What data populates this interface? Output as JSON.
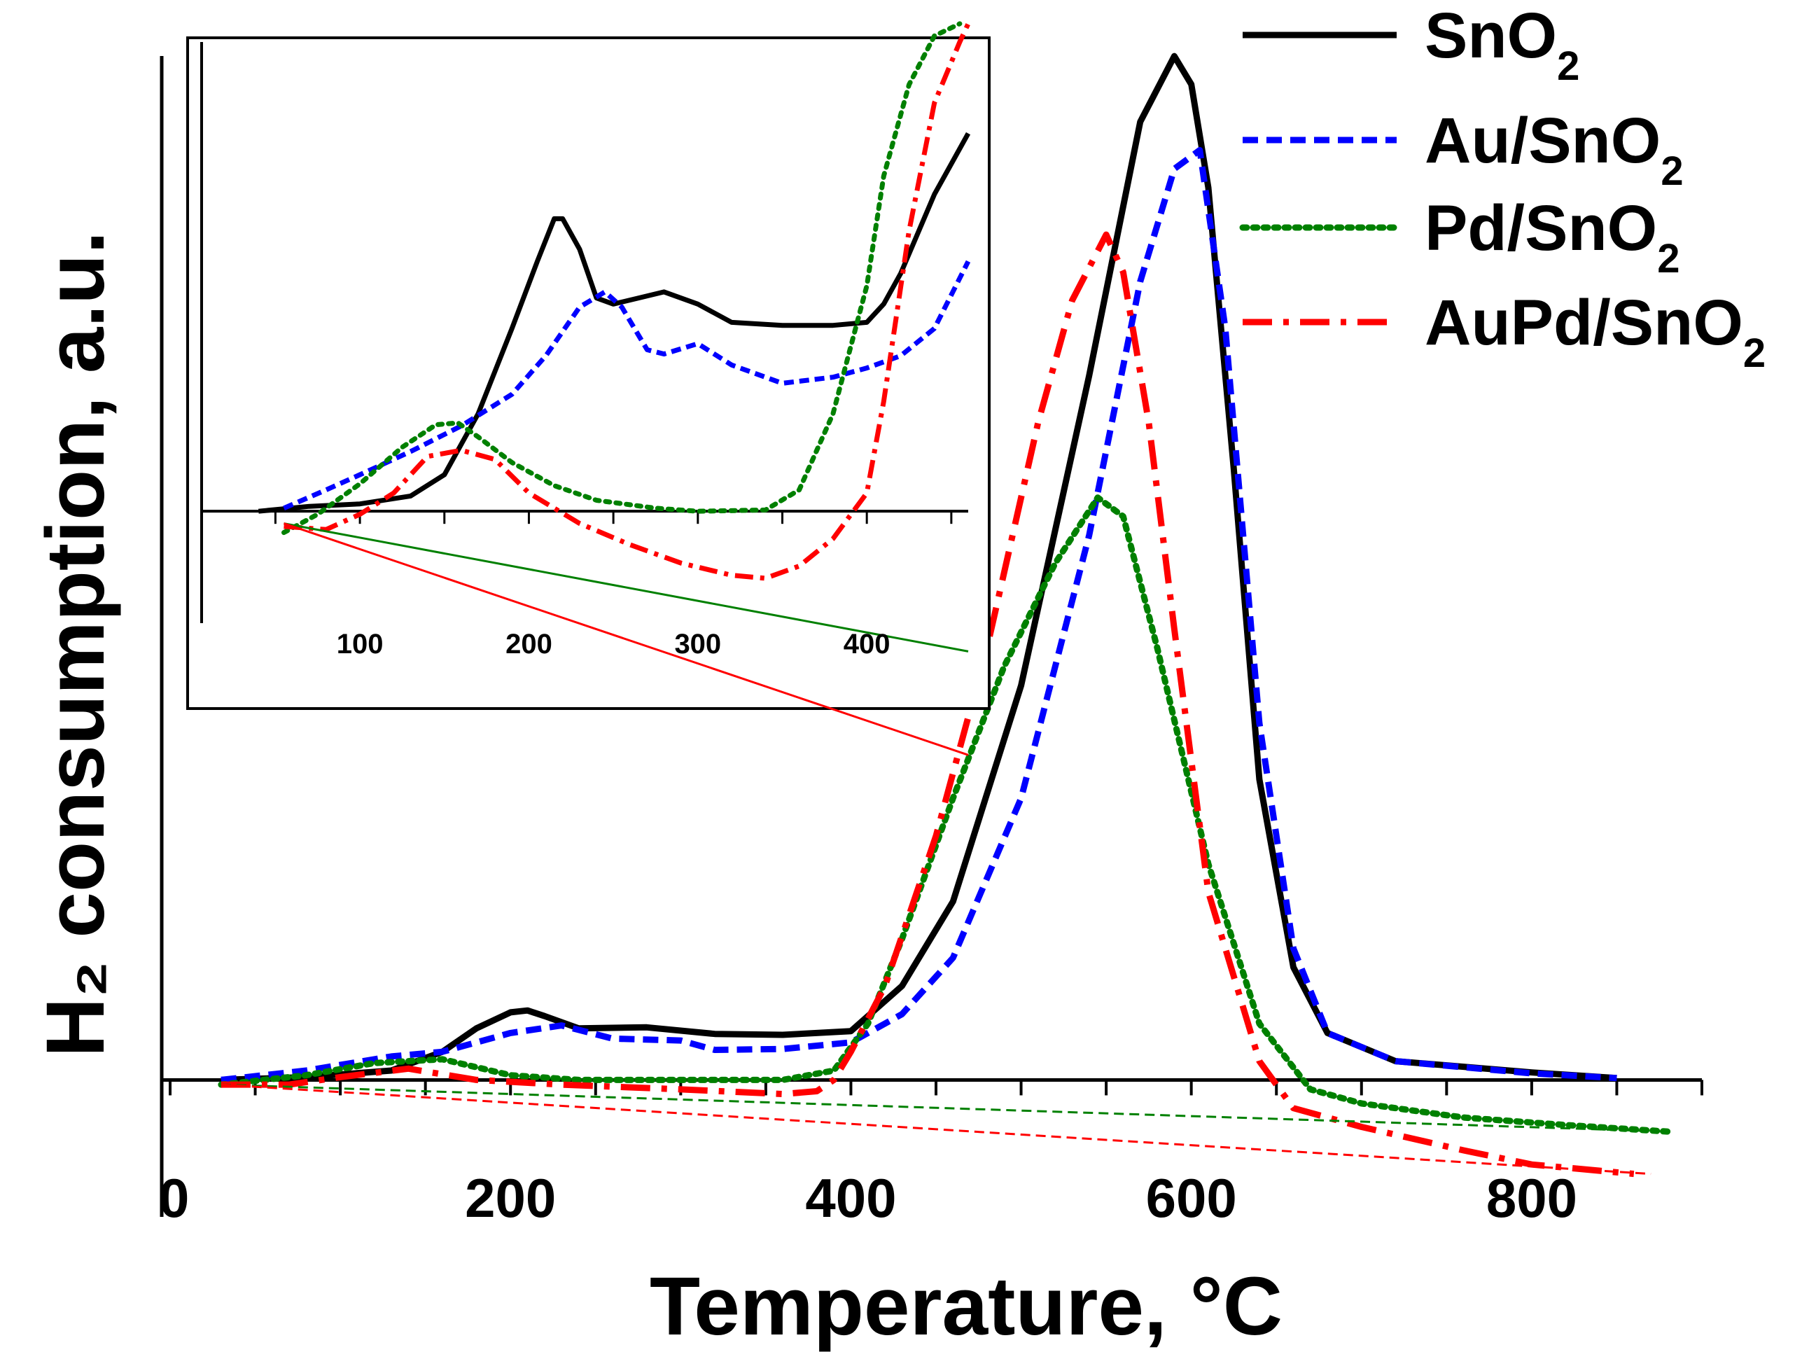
{
  "chart_data": [
    {
      "type": "line",
      "panel": "main",
      "xlabel": "Temperature, °C",
      "ylabel": "H₂ consumption, a.u.",
      "xlim": [
        0,
        900
      ],
      "ylim": [
        -1.1,
        11.2
      ],
      "x_ticks": [
        0,
        200,
        400,
        600,
        800
      ],
      "grid": false,
      "legend": {
        "placement": "top-right",
        "entries": [
          {
            "base": "SnO",
            "sub": "2",
            "series": "SnO2"
          },
          {
            "base": "Au/SnO",
            "sub": "2",
            "series": "Au/SnO2"
          },
          {
            "base": "Pd/SnO",
            "sub": "2",
            "series": "Pd/SnO2"
          },
          {
            "base": "AuPd/SnO",
            "sub": "2",
            "series": "AuPd/SnO2"
          }
        ]
      },
      "series": [
        {
          "name": "SnO2",
          "color": "#000000",
          "style": "solid",
          "x": [
            30,
            80,
            130,
            160,
            180,
            200,
            210,
            220,
            240,
            280,
            320,
            360,
            400,
            430,
            460,
            500,
            540,
            570,
            590,
            600,
            610,
            625,
            640,
            660,
            680,
            720,
            800,
            850
          ],
          "y": [
            0,
            0.03,
            0.1,
            0.3,
            0.55,
            0.72,
            0.74,
            0.68,
            0.55,
            0.56,
            0.49,
            0.48,
            0.52,
            1.0,
            1.9,
            4.2,
            7.5,
            10.2,
            10.9,
            10.6,
            9.5,
            6.5,
            3.2,
            1.2,
            0.5,
            0.2,
            0.08,
            0.02
          ]
        },
        {
          "name": "Au/SnO2",
          "color": "#0000ff",
          "style": "dashed",
          "x": [
            30,
            80,
            130,
            160,
            200,
            230,
            260,
            300,
            320,
            360,
            400,
            430,
            460,
            500,
            540,
            570,
            590,
            605,
            620,
            640,
            660,
            680,
            720,
            800,
            850
          ],
          "y": [
            0,
            0.1,
            0.25,
            0.3,
            0.5,
            0.58,
            0.44,
            0.42,
            0.32,
            0.33,
            0.4,
            0.7,
            1.3,
            3.0,
            5.8,
            8.5,
            9.7,
            9.9,
            8.0,
            3.8,
            1.4,
            0.5,
            0.2,
            0.07,
            0.02
          ]
        },
        {
          "name": "Pd/SnO2",
          "color": "#008000",
          "style": "dotted",
          "x": [
            30,
            80,
            120,
            160,
            200,
            240,
            300,
            360,
            390,
            410,
            430,
            460,
            490,
            520,
            545,
            560,
            580,
            610,
            640,
            670,
            700,
            760,
            820,
            880
          ],
          "y": [
            -0.05,
            0.05,
            0.18,
            0.22,
            0.05,
            0.0,
            0.0,
            0.0,
            0.1,
            0.6,
            1.5,
            3.0,
            4.4,
            5.5,
            6.2,
            6.0,
            4.6,
            2.3,
            0.6,
            -0.1,
            -0.25,
            -0.4,
            -0.48,
            -0.55
          ]
        },
        {
          "name": "AuPd/SnO2",
          "color": "#ff0000",
          "style": "dashdot",
          "x": [
            30,
            70,
            100,
            140,
            180,
            230,
            300,
            360,
            380,
            390,
            400,
            420,
            450,
            480,
            510,
            530,
            550,
            560,
            575,
            590,
            610,
            640,
            660,
            700,
            760,
            800,
            860
          ],
          "y": [
            -0.05,
            -0.05,
            0.03,
            0.12,
            0.0,
            -0.05,
            -0.1,
            -0.15,
            -0.12,
            0.0,
            0.3,
            1.0,
            2.6,
            4.6,
            7.0,
            8.3,
            9.0,
            8.6,
            7.0,
            4.8,
            2.0,
            0.2,
            -0.3,
            -0.5,
            -0.75,
            -0.9,
            -1.0
          ]
        },
        {
          "name": "Pd/SnO2 baseline",
          "color": "#008000",
          "style": "thin-dashed",
          "x": [
            30,
            880
          ],
          "y": [
            -0.05,
            -0.55
          ]
        },
        {
          "name": "AuPd/SnO2 baseline",
          "color": "#ff0000",
          "style": "thin-dashed",
          "x": [
            30,
            870
          ],
          "y": [
            -0.05,
            -1.0
          ]
        }
      ]
    },
    {
      "type": "line",
      "panel": "inset",
      "location": "top-left",
      "xlim": [
        20,
        460
      ],
      "ylim": [
        -3.1,
        7.7
      ],
      "x_ticks": [
        100,
        200,
        300,
        400
      ],
      "grid": false,
      "series": [
        {
          "name": "SnO2",
          "color": "#000000",
          "style": "solid",
          "x": [
            40,
            70,
            100,
            130,
            150,
            170,
            190,
            205,
            215,
            220,
            230,
            240,
            250,
            265,
            280,
            300,
            320,
            350,
            380,
            400,
            410,
            420,
            440,
            460
          ],
          "y": [
            0.0,
            0.08,
            0.12,
            0.25,
            0.6,
            1.6,
            3.0,
            4.1,
            4.8,
            4.8,
            4.3,
            3.5,
            3.4,
            3.5,
            3.6,
            3.4,
            3.1,
            3.05,
            3.05,
            3.1,
            3.4,
            3.9,
            5.2,
            6.2
          ]
        },
        {
          "name": "Au/SnO2",
          "color": "#0000ff",
          "style": "dashed",
          "x": [
            55,
            80,
            100,
            130,
            160,
            190,
            210,
            230,
            245,
            255,
            270,
            280,
            300,
            320,
            350,
            380,
            400,
            420,
            440,
            460
          ],
          "y": [
            0.05,
            0.35,
            0.6,
            0.98,
            1.4,
            1.92,
            2.55,
            3.35,
            3.6,
            3.35,
            2.65,
            2.58,
            2.75,
            2.4,
            2.1,
            2.2,
            2.35,
            2.55,
            3.0,
            4.1
          ]
        },
        {
          "name": "Pd/SnO2",
          "color": "#008000",
          "style": "dotted",
          "x": [
            55,
            75,
            100,
            125,
            145,
            158,
            170,
            190,
            215,
            240,
            275,
            300,
            340,
            360,
            380,
            400,
            410,
            425,
            440,
            455
          ],
          "y": [
            -0.35,
            -0.05,
            0.45,
            1.05,
            1.42,
            1.45,
            1.22,
            0.8,
            0.42,
            0.18,
            0.05,
            0.0,
            0.02,
            0.35,
            1.6,
            3.7,
            5.5,
            7.0,
            7.8,
            8.0
          ]
        },
        {
          "name": "AuPd/SnO2",
          "color": "#ff0000",
          "style": "dashdot",
          "x": [
            55,
            80,
            100,
            120,
            140,
            160,
            180,
            200,
            230,
            260,
            290,
            320,
            340,
            360,
            380,
            400,
            410,
            425,
            440,
            455,
            460
          ],
          "y": [
            -0.25,
            -0.3,
            -0.05,
            0.3,
            0.9,
            1.0,
            0.85,
            0.3,
            -0.2,
            -0.55,
            -0.85,
            -1.05,
            -1.1,
            -0.9,
            -0.45,
            0.3,
            1.8,
            4.6,
            6.7,
            7.7,
            8.0
          ]
        },
        {
          "name": "Pd/SnO2 baseline",
          "color": "#008000",
          "style": "thin-solid",
          "x": [
            55,
            460
          ],
          "y": [
            -0.2,
            -2.3
          ]
        },
        {
          "name": "AuPd/SnO2 baseline",
          "color": "#ff0000",
          "style": "thin-solid",
          "x": [
            55,
            460
          ],
          "y": [
            -0.2,
            -4.0
          ]
        }
      ]
    }
  ]
}
